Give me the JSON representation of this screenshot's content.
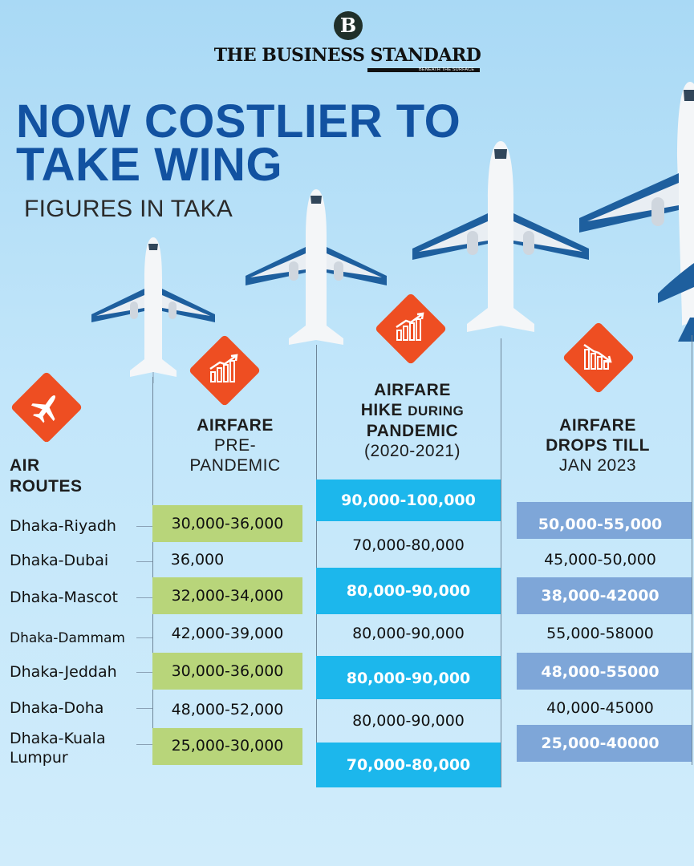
{
  "masthead": {
    "logo_letter": "B",
    "name": "THE BUSINESS STANDARD",
    "tagline": "BENEATH THE SURFACE"
  },
  "title": {
    "line1": "NOW COSTLIER TO",
    "line2": "TAKE WING",
    "subtitle": "FIGURES IN TAKA"
  },
  "headers": {
    "routes_l1": "AIR",
    "routes_l2": "ROUTES",
    "pre_l1": "AIRFARE",
    "pre_l2": "PRE-",
    "pre_l3": "PANDEMIC",
    "hike_l1": "AIRFARE",
    "hike_l2a": "HIKE ",
    "hike_l2b": "DURING",
    "hike_l3": "PANDEMIC",
    "hike_l4": "(2020-2021)",
    "drop_l1": "AIRFARE",
    "drop_l2": "DROPS TILL",
    "drop_l3": "JAN 2023"
  },
  "icons": {
    "routes": "airplane-icon",
    "pre": "rising-chart-icon",
    "hike": "rising-chart-icon",
    "drop": "falling-chart-icon"
  },
  "colors": {
    "title_blue": "#1252a1",
    "icon_orange": "#ee4e22",
    "green_band": "#b8d57a",
    "cyan_band": "#1cb7ec",
    "steel_band": "#7ea6d8"
  },
  "chart_data": {
    "type": "table",
    "title": "NOW COSTLIER TO TAKE WING",
    "subtitle": "FIGURES IN TAKA",
    "columns": [
      "AIR ROUTES",
      "AIRFARE PRE-PANDEMIC",
      "AIRFARE HIKE DURING PANDEMIC (2020-2021)",
      "AIRFARE DROPS TILL JAN 2023"
    ],
    "rows": [
      {
        "route": "Dhaka-Riyadh",
        "pre": "30,000-36,000",
        "hike": "90,000-100,000",
        "drop": "50,000-55,000"
      },
      {
        "route": "Dhaka-Dubai",
        "pre": "36,000",
        "hike": "70,000-80,000",
        "drop": "45,000-50,000"
      },
      {
        "route": "Dhaka-Mascot",
        "pre": "32,000-34,000",
        "hike": "80,000-90,000",
        "drop": "38,000-42000"
      },
      {
        "route": "Dhaka-Dammam",
        "pre": "42,000-39,000",
        "hike": "80,000-90,000",
        "drop": "55,000-58000"
      },
      {
        "route": "Dhaka-Jeddah",
        "pre": "30,000-36,000",
        "hike": "80,000-90,000",
        "drop": "48,000-55000"
      },
      {
        "route": "Dhaka-Doha",
        "pre": "48,000-52,000",
        "hike": "80,000-90,000",
        "drop": "40,000-45000"
      },
      {
        "route_l1": "Dhaka-Kuala",
        "route_l2": "Lumpur",
        "pre": "25,000-30,000",
        "hike": "70,000-80,000",
        "drop": "25,000-40000"
      }
    ]
  }
}
